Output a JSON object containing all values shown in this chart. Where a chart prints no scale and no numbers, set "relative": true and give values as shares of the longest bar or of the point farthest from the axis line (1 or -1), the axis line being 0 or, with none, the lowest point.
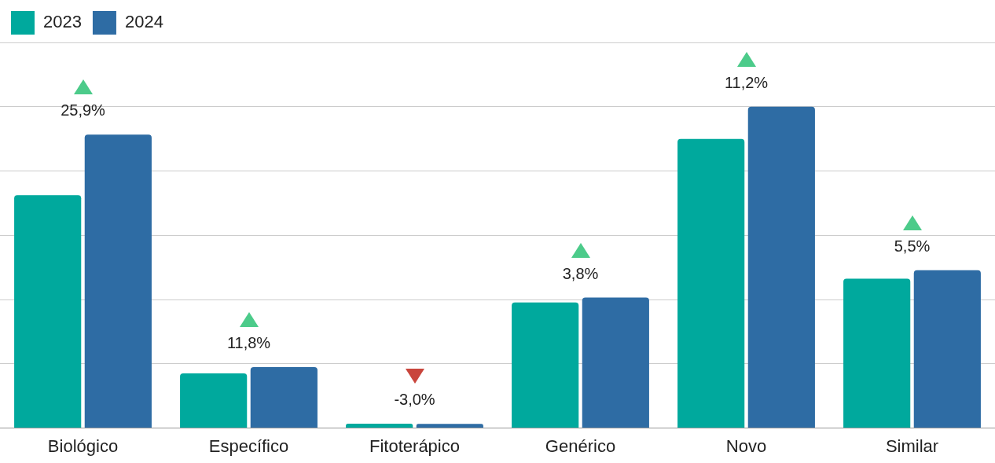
{
  "chart_data": {
    "type": "bar",
    "relative": true,
    "categories": [
      "Biológico",
      "Específico",
      "Fitoterápico",
      "Genérico",
      "Novo",
      "Similar"
    ],
    "series": [
      {
        "name": "2023",
        "color": "#00a99d",
        "values": [
          0.725,
          0.17,
          0.014,
          0.391,
          0.9,
          0.465
        ]
      },
      {
        "name": "2024",
        "color": "#2e6ca4",
        "values": [
          0.913,
          0.19,
          0.013,
          0.406,
          1,
          0.491
        ]
      }
    ],
    "annotations": [
      "25,9%",
      "11,8%",
      "-3,0%",
      "3,8%",
      "11,2%",
      "5,5%"
    ],
    "grid": "y",
    "legend": "top left"
  }
}
